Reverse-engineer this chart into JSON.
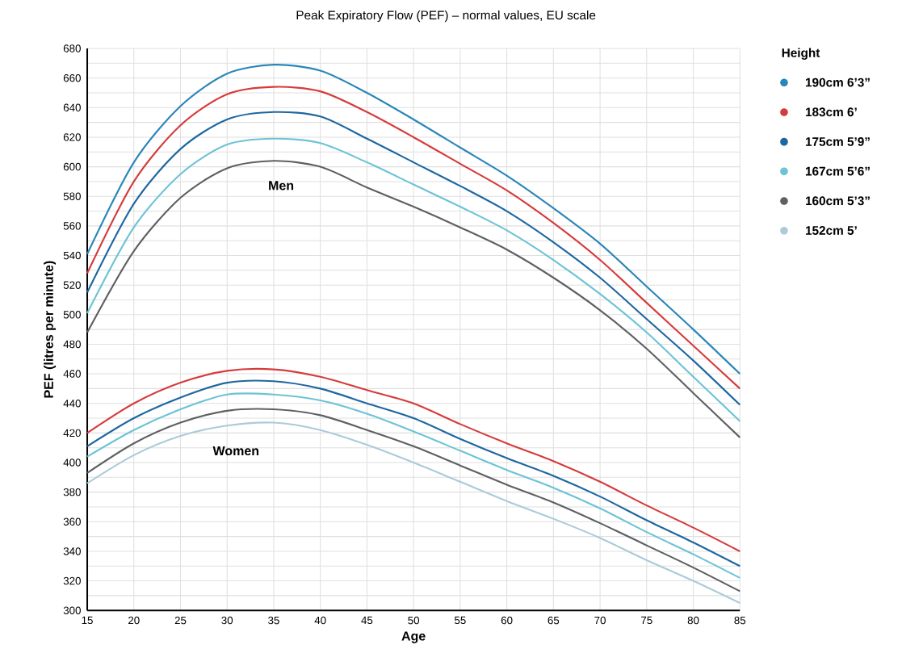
{
  "chart_data": {
    "type": "line",
    "title": "Peak Expiratory Flow (PEF) – normal values, EU scale",
    "xlabel": "Age",
    "ylabel": "PEF (litres per minute)",
    "legend_title": "Height",
    "legend": "right",
    "grid": true,
    "marker": "none",
    "line_style": "solid",
    "x": [
      15,
      20,
      25,
      30,
      35,
      40,
      45,
      50,
      55,
      60,
      65,
      70,
      75,
      80,
      85
    ],
    "xlim": [
      15,
      85
    ],
    "xticks": [
      15,
      20,
      25,
      30,
      35,
      40,
      45,
      50,
      55,
      60,
      65,
      70,
      75,
      80,
      85
    ],
    "ylim": [
      300,
      680
    ],
    "yticks": [
      300,
      320,
      340,
      360,
      380,
      400,
      420,
      440,
      460,
      480,
      500,
      520,
      540,
      560,
      580,
      600,
      620,
      640,
      660,
      680
    ],
    "series": [
      {
        "name": "190cm 6’3”",
        "color": "#2a86b8",
        "values": [
          541,
          603,
          641,
          663,
          669,
          665,
          650,
          632,
          613,
          594,
          572,
          548,
          519,
          490,
          460
        ]
      },
      {
        "name": "183cm 6’",
        "color": "#d63b3c",
        "values": [
          528,
          590,
          628,
          649,
          654,
          651,
          637,
          620,
          602,
          584,
          562,
          537,
          508,
          479,
          450
        ]
      },
      {
        "name": "175cm 5’9”",
        "color": "#1d67a0",
        "values": [
          515,
          575,
          612,
          632,
          637,
          634,
          619,
          603,
          587,
          570,
          549,
          525,
          497,
          469,
          439
        ]
      },
      {
        "name": "167cm 5’6”",
        "color": "#6cc3d6",
        "values": [
          501,
          559,
          595,
          615,
          619,
          616,
          603,
          588,
          573,
          557,
          537,
          514,
          488,
          458,
          428
        ]
      },
      {
        "name": "160cm 5’3”",
        "color": "#5f6062",
        "values": [
          488,
          543,
          579,
          599,
          604,
          600,
          586,
          573,
          559,
          544,
          525,
          503,
          477,
          447,
          417
        ]
      },
      {
        "color": "#d63b3c",
        "values": [
          420,
          440,
          454,
          462,
          463,
          458,
          449,
          440,
          426,
          413,
          401,
          387,
          371,
          356,
          340
        ]
      },
      {
        "color": "#1d67a0",
        "values": [
          411,
          430,
          444,
          454,
          455,
          450,
          440,
          430,
          416,
          403,
          391,
          377,
          361,
          346,
          330
        ]
      },
      {
        "color": "#6cc3d6",
        "values": [
          404,
          422,
          436,
          446,
          446,
          442,
          433,
          421,
          408,
          395,
          383,
          369,
          353,
          338,
          322
        ]
      },
      {
        "color": "#5f6062",
        "values": [
          393,
          413,
          427,
          435,
          436,
          432,
          422,
          411,
          398,
          385,
          373,
          359,
          344,
          329,
          313
        ]
      },
      {
        "name": "152cm 5’",
        "color": "#abcbd9",
        "values": [
          386,
          405,
          418,
          425,
          427,
          422,
          412,
          400,
          387,
          374,
          362,
          349,
          334,
          320,
          305
        ]
      }
    ],
    "annotations": [
      "Men",
      "Women"
    ]
  }
}
